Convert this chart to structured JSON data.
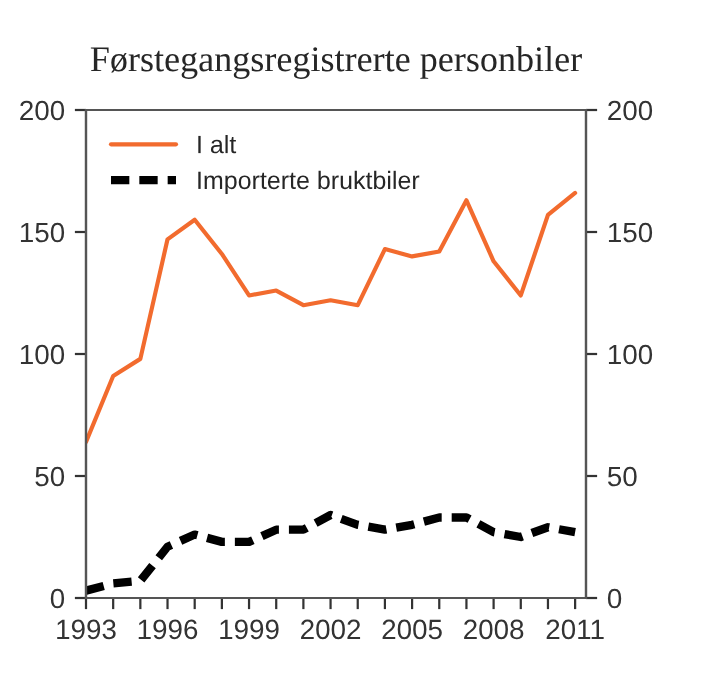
{
  "chart_data": {
    "type": "line",
    "title": "Førstegangsregistrerte personbiler",
    "x": [
      1993,
      1994,
      1995,
      1996,
      1997,
      1998,
      1999,
      2000,
      2001,
      2002,
      2003,
      2004,
      2005,
      2006,
      2007,
      2008,
      2009,
      2010,
      2011
    ],
    "series": [
      {
        "name": "I alt",
        "color": "#f26b2e",
        "line_style": "solid",
        "values": [
          64,
          91,
          98,
          147,
          155,
          141,
          124,
          126,
          120,
          122,
          120,
          143,
          140,
          142,
          163,
          138,
          124,
          157,
          166
        ]
      },
      {
        "name": "Importerte bruktbiler",
        "color": "#000000",
        "line_style": "dashed",
        "values": [
          3,
          6,
          7,
          21,
          26,
          23,
          23,
          28,
          28,
          34,
          30,
          28,
          30,
          33,
          33,
          27,
          25,
          29,
          27
        ]
      }
    ],
    "xlim": [
      1993,
      2011.4
    ],
    "xticks": [
      1993,
      {
        "value": 1994,
        "label": null
      },
      {
        "value": 1995,
        "label": null
      },
      1996,
      {
        "value": 1997,
        "label": null
      },
      {
        "value": 1998,
        "label": null
      },
      1999,
      {
        "value": 2000,
        "label": null
      },
      {
        "value": 2001,
        "label": null
      },
      2002,
      {
        "value": 2003,
        "label": null
      },
      {
        "value": 2004,
        "label": null
      },
      2005,
      {
        "value": 2006,
        "label": null
      },
      {
        "value": 2007,
        "label": null
      },
      2008,
      {
        "value": 2009,
        "label": null
      },
      {
        "value": 2010,
        "label": null
      },
      2011
    ],
    "ylim": [
      0,
      200
    ],
    "yticks": [
      0,
      50,
      100,
      150,
      200
    ],
    "y2lim": [
      0,
      200
    ],
    "y2ticks": [
      0,
      50,
      100,
      150,
      200
    ],
    "legend": "top left",
    "grid": false
  }
}
